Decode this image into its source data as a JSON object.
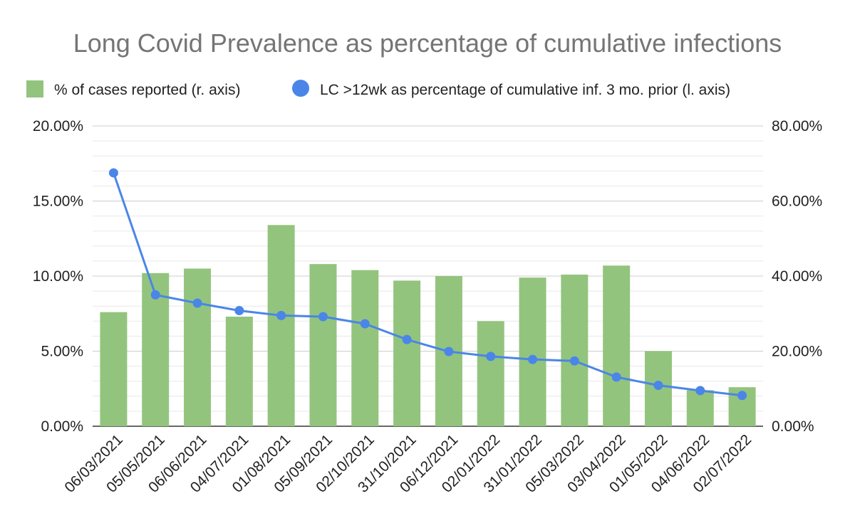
{
  "chart_data": {
    "type": "bar",
    "title": "Long Covid Prevalence as percentage of cumulative infections",
    "categories": [
      "06/03/2021",
      "05/05/2021",
      "06/06/2021",
      "04/07/2021",
      "01/08/2021",
      "05/09/2021",
      "02/10/2021",
      "31/10/2021",
      "06/12/2021",
      "02/01/2022",
      "31/01/2022",
      "05/03/2022",
      "03/04/2022",
      "01/05/2022",
      "04/06/2022",
      "02/07/2022"
    ],
    "series": [
      {
        "name": "% of cases reported (r. axis)",
        "type": "bar",
        "axis": "left",
        "color": "#93c47d",
        "values": [
          7.6,
          10.2,
          10.5,
          7.3,
          13.4,
          10.8,
          10.4,
          9.7,
          10.0,
          7.0,
          9.9,
          10.1,
          10.7,
          5.0,
          2.4,
          2.6
        ]
      },
      {
        "name": "LC >12wk as percentage of cumulative inf. 3 mo. prior (l. axis)",
        "type": "line",
        "axis": "right",
        "color": "#4a86e8",
        "values": [
          67.5,
          35.0,
          32.8,
          30.8,
          29.5,
          29.2,
          27.3,
          23.1,
          19.9,
          18.6,
          17.8,
          17.4,
          13.1,
          10.9,
          9.5,
          8.2
        ]
      }
    ],
    "y_left": {
      "ylim": [
        0,
        20
      ],
      "ticks": [
        "0.00%",
        "5.00%",
        "10.00%",
        "15.00%",
        "20.00%"
      ]
    },
    "y_right": {
      "ylim": [
        0,
        80
      ],
      "ticks": [
        "0.00%",
        "20.00%",
        "40.00%",
        "60.00%",
        "80.00%"
      ]
    },
    "grid": true,
    "legend_position": "top"
  }
}
